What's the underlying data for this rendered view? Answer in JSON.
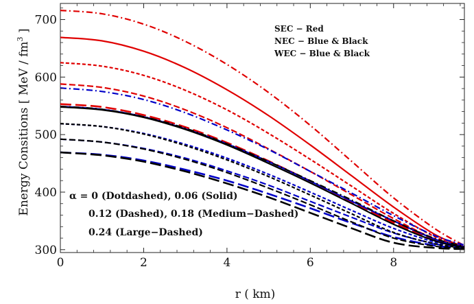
{
  "chart_data": {
    "type": "line",
    "title": "",
    "xlabel": "r ( km)",
    "ylabel": "Energy  Consitions  [ MeV / fm^3 ]",
    "xlim": [
      0,
      9.7
    ],
    "ylim": [
      295,
      728
    ],
    "grid": false,
    "xticks": [
      "0",
      "2",
      "4",
      "6",
      "8"
    ],
    "yticks": [
      "300",
      "400",
      "500",
      "600",
      "700"
    ],
    "legend_lines": [
      "SEC − Red",
      "NEC − Blue  & Black",
      "WEC − Blue  & Black"
    ],
    "annotation_lines": [
      "α = 0 (Dotdashed), 0.06 (Solid)",
      "0.12 (Dashed), 0.18 (Medium−Dashed)",
      "0.24 (Large−Dashed)"
    ],
    "x": [
      0,
      1,
      2,
      3,
      4,
      5,
      6,
      7,
      8,
      9,
      9.7
    ],
    "series": [
      {
        "color": "#e00000",
        "style": "dotdashed",
        "values": [
          716,
          710,
          692,
          662,
          622,
          573,
          516,
          453,
          390,
          336,
          307
        ]
      },
      {
        "color": "#e00000",
        "style": "solid",
        "values": [
          669,
          663,
          645,
          616,
          578,
          533,
          482,
          428,
          374,
          326,
          305
        ]
      },
      {
        "color": "#e00000",
        "style": "dashed",
        "values": [
          625,
          619,
          603,
          577,
          543,
          502,
          457,
          410,
          363,
          322,
          304
        ]
      },
      {
        "color": "#e00000",
        "style": "medium-dashed",
        "values": [
          588,
          582,
          567,
          543,
          512,
          475,
          436,
          395,
          354,
          318,
          303
        ]
      },
      {
        "color": "#e00000",
        "style": "large-dashed",
        "values": [
          553,
          548,
          534,
          513,
          486,
          454,
          419,
          383,
          347,
          316,
          302
        ]
      },
      {
        "color": "#0000c8",
        "style": "dotdashed",
        "values": [
          581,
          575,
          561,
          538,
          508,
          474,
          436,
          398,
          359,
          324,
          308
        ]
      },
      {
        "color": "#0000c8",
        "style": "solid",
        "values": [
          549,
          544,
          531,
          510,
          484,
          453,
          419,
          384,
          350,
          318,
          305
        ]
      },
      {
        "color": "#0000c8",
        "style": "dashed",
        "values": [
          519,
          514,
          502,
          483,
          459,
          431,
          400,
          368,
          337,
          313,
          304
        ]
      },
      {
        "color": "#0000c8",
        "style": "medium-dashed",
        "values": [
          492,
          487,
          476,
          459,
          437,
          412,
          384,
          356,
          329,
          310,
          303
        ]
      },
      {
        "color": "#0000c8",
        "style": "large-dashed",
        "values": [
          469,
          465,
          455,
          439,
          420,
          397,
          372,
          346,
          322,
          307,
          302
        ]
      },
      {
        "color": "#000000",
        "style": "dotdashed",
        "values": [
          549,
          544,
          531,
          511,
          484,
          453,
          420,
          386,
          350,
          319,
          306
        ]
      },
      {
        "color": "#000000",
        "style": "solid",
        "values": [
          548,
          543,
          530,
          509,
          482,
          450,
          416,
          380,
          344,
          315,
          304
        ]
      },
      {
        "color": "#000000",
        "style": "dashed",
        "values": [
          519,
          514,
          501,
          481,
          456,
          427,
          395,
          362,
          330,
          310,
          303
        ]
      },
      {
        "color": "#000000",
        "style": "medium-dashed",
        "values": [
          492,
          487,
          475,
          457,
          434,
          407,
          378,
          348,
          320,
          306,
          302
        ]
      },
      {
        "color": "#000000",
        "style": "large-dashed",
        "values": [
          469,
          464,
          453,
          436,
          415,
          391,
          364,
          337,
          312,
          303,
          301
        ]
      }
    ]
  }
}
